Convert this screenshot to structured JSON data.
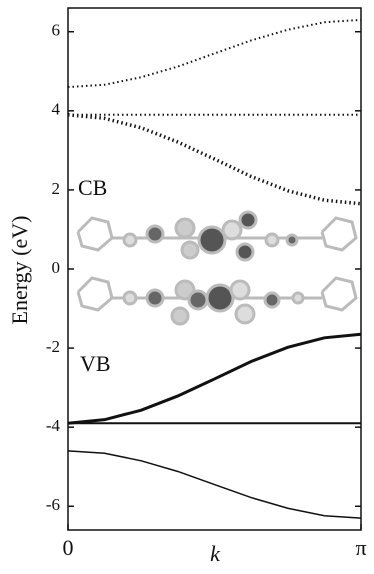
{
  "chart_data": {
    "type": "line",
    "y_label": "Energy (eV)",
    "x_label": "k",
    "annotations": [
      "CB",
      "VB"
    ],
    "x": [
      0,
      0.3927,
      0.7854,
      1.1781,
      1.5708,
      1.9635,
      2.3562,
      2.7489,
      3.14159
    ],
    "series": [
      {
        "color": "#111111",
        "style": "dotted",
        "width": 2,
        "values": [
          4.6,
          4.66,
          4.85,
          5.12,
          5.45,
          5.78,
          6.05,
          6.24,
          6.3
        ]
      },
      {
        "color": "#111111",
        "style": "dotted",
        "width": 2,
        "values": [
          3.9,
          3.9,
          3.9,
          3.9,
          3.9,
          3.9,
          3.9,
          3.9,
          3.9
        ]
      },
      {
        "color": "#111111",
        "style": "dotted",
        "width": 3.5,
        "values": [
          3.9,
          3.81,
          3.57,
          3.21,
          2.78,
          2.34,
          1.98,
          1.74,
          1.65
        ]
      },
      {
        "color": "#111111",
        "style": "solid",
        "width": 3,
        "values": [
          -3.9,
          -3.81,
          -3.57,
          -3.21,
          -2.78,
          -2.34,
          -1.98,
          -1.74,
          -1.65
        ]
      },
      {
        "color": "#111111",
        "style": "solid",
        "width": 2,
        "values": [
          -3.9,
          -3.9,
          -3.9,
          -3.9,
          -3.9,
          -3.9,
          -3.9,
          -3.9,
          -3.9
        ]
      },
      {
        "color": "#111111",
        "style": "solid",
        "width": 1.5,
        "values": [
          -4.6,
          -4.66,
          -4.85,
          -5.12,
          -5.45,
          -5.78,
          -6.05,
          -6.24,
          -6.3
        ]
      }
    ],
    "xlim": [
      0,
      3.14159
    ],
    "xticks": [
      {
        "value": 0,
        "label": "0"
      },
      {
        "value": 3.14159,
        "label": "π"
      }
    ],
    "ylim": [
      -6.6,
      6.6
    ],
    "yticks": [
      -6,
      -4,
      -2,
      0,
      2,
      4,
      6
    ],
    "grid": false
  }
}
